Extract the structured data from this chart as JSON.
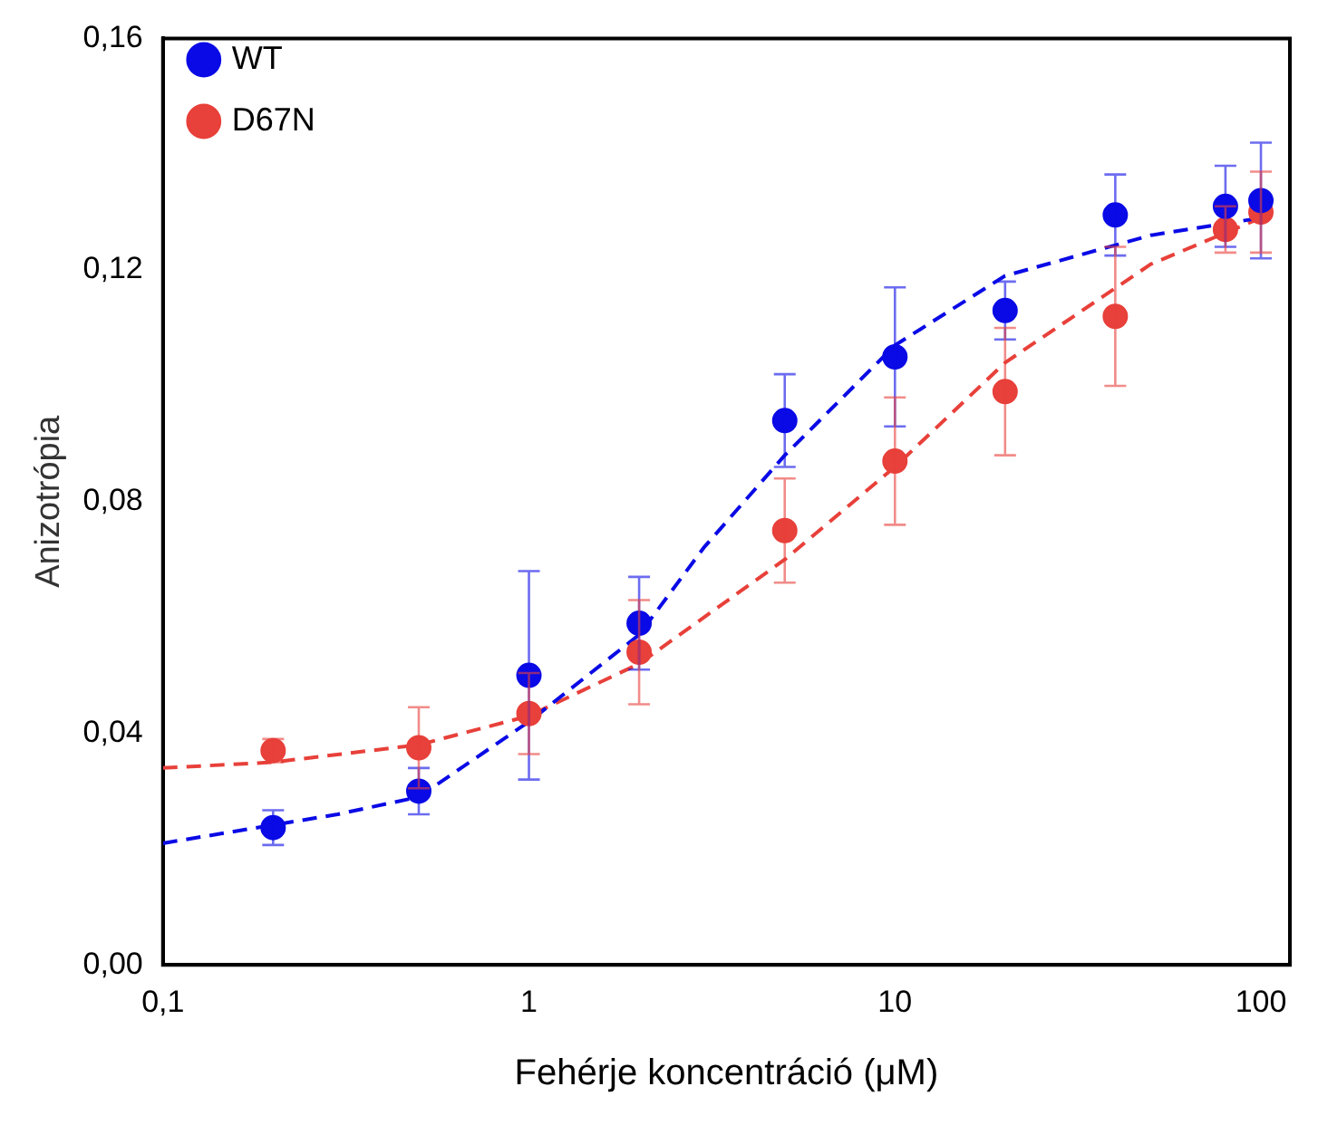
{
  "chart_data": {
    "type": "scatter",
    "xlabel": "Fehérje koncentráció (μM)",
    "ylabel": "Anizotrópia",
    "log": "x",
    "xlim": [
      0.1,
      120
    ],
    "xticks": [
      {
        "value": 0.1,
        "label": "0,1"
      },
      1,
      10,
      100
    ],
    "ylim": [
      0,
      0.16
    ],
    "yticks": [
      {
        "value": 0,
        "label": "0,00"
      },
      {
        "value": 0.04,
        "label": "0,04"
      },
      {
        "value": 0.08,
        "label": "0,08"
      },
      {
        "value": 0.12,
        "label": "0,12"
      },
      {
        "value": 0.16,
        "label": "0,16"
      }
    ],
    "grid": false,
    "legend": "top left",
    "marker": "circle",
    "series": [
      {
        "name": "WT",
        "color": "#0a0ae6",
        "x": [
          0.2,
          0.5,
          1,
          2,
          5,
          10,
          20,
          40,
          80,
          100
        ],
        "values": [
          0.0237,
          0.03,
          0.05,
          0.059,
          0.094,
          0.105,
          0.113,
          0.1295,
          0.131,
          0.132
        ],
        "errors": [
          0.003,
          0.004,
          0.018,
          0.008,
          0.008,
          0.012,
          0.005,
          0.007,
          0.007,
          0.01
        ]
      },
      {
        "name": "D67N",
        "color": "#e8403a",
        "x": [
          0.2,
          0.5,
          1,
          2,
          5,
          10,
          20,
          40,
          80,
          100
        ],
        "values": [
          0.037,
          0.0375,
          0.0434,
          0.054,
          0.075,
          0.087,
          0.099,
          0.112,
          0.127,
          0.13
        ],
        "errors": [
          0.002,
          0.007,
          0.007,
          0.009,
          0.009,
          0.011,
          0.011,
          0.012,
          0.004,
          0.007
        ]
      },
      {
        "type": "line",
        "color": "#0a0ae6",
        "line_style": "dashed",
        "marker": "none",
        "x": [
          0.1,
          0.3,
          0.5,
          1,
          2,
          3,
          5,
          10,
          20,
          50,
          100
        ],
        "values": [
          0.021,
          0.026,
          0.029,
          0.042,
          0.057,
          0.072,
          0.088,
          0.107,
          0.119,
          0.126,
          0.129
        ]
      },
      {
        "type": "line",
        "color": "#e8403a",
        "line_style": "dashed",
        "marker": "none",
        "x": [
          0.1,
          0.2,
          0.5,
          1,
          2,
          5,
          10,
          20,
          50,
          100
        ],
        "values": [
          0.034,
          0.035,
          0.038,
          0.043,
          0.052,
          0.07,
          0.086,
          0.104,
          0.121,
          0.129
        ]
      }
    ]
  }
}
